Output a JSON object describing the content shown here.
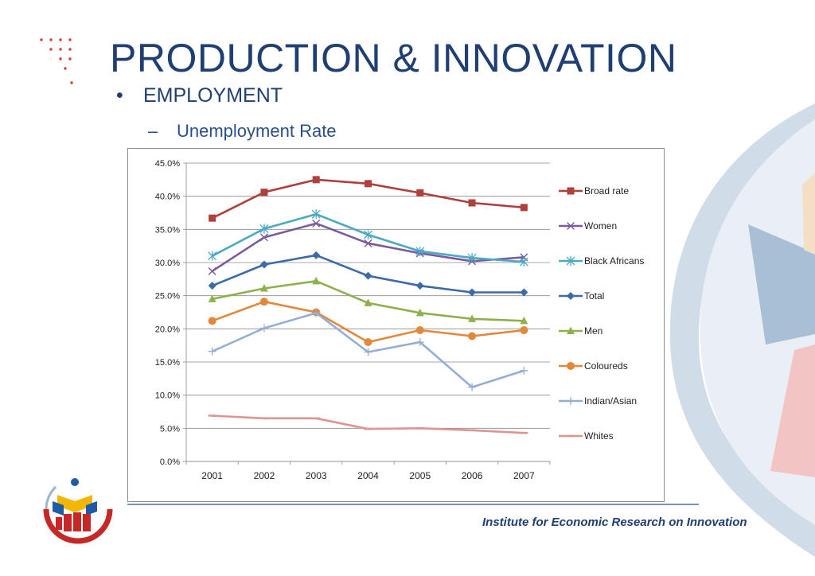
{
  "slide": {
    "title": "PRODUCTION & INNOVATION",
    "bullet": "EMPLOYMENT",
    "subbullet": "Unemployment Rate",
    "bullet_mark": "•",
    "sub_mark": "–",
    "footer": "Institute for Economic Research on Innovation"
  },
  "chart_data": {
    "type": "line",
    "title": "",
    "xlabel": "",
    "ylabel": "",
    "categories": [
      "2001",
      "2002",
      "2003",
      "2004",
      "2005",
      "2006",
      "2007"
    ],
    "ylim": [
      0,
      45
    ],
    "yticks": [
      "0.0%",
      "5.0%",
      "10.0%",
      "15.0%",
      "20.0%",
      "25.0%",
      "30.0%",
      "35.0%",
      "40.0%",
      "45.0%"
    ],
    "grid": true,
    "legend_position": "right",
    "series": [
      {
        "name": "Broad rate",
        "color": "#b0403b",
        "marker": "square",
        "values": [
          36.7,
          40.6,
          42.5,
          41.9,
          40.5,
          39.0,
          38.3
        ]
      },
      {
        "name": "Women",
        "color": "#7b5a9e",
        "marker": "x",
        "values": [
          28.7,
          33.8,
          35.9,
          32.9,
          31.4,
          30.2,
          30.8
        ]
      },
      {
        "name": "Black Africans",
        "color": "#4aaac3",
        "marker": "asterisk",
        "values": [
          31.0,
          35.1,
          37.3,
          34.2,
          31.7,
          30.7,
          30.1
        ]
      },
      {
        "name": "Total",
        "color": "#3d6aa8",
        "marker": "diamond",
        "values": [
          26.5,
          29.7,
          31.1,
          28.0,
          26.5,
          25.5,
          25.5
        ]
      },
      {
        "name": "Men",
        "color": "#8eb14e",
        "marker": "triangle",
        "values": [
          24.5,
          26.1,
          27.2,
          23.9,
          22.4,
          21.5,
          21.2
        ]
      },
      {
        "name": "Coloureds",
        "color": "#e38839",
        "marker": "circle",
        "values": [
          21.2,
          24.1,
          22.5,
          18.0,
          19.8,
          18.9,
          19.8
        ]
      },
      {
        "name": "Indian/Asian",
        "color": "#94aed5",
        "marker": "plus",
        "values": [
          16.6,
          20.1,
          22.4,
          16.5,
          18.0,
          11.2,
          13.7
        ]
      },
      {
        "name": "Whites",
        "color": "#dc9593",
        "marker": "dash",
        "values": [
          6.9,
          6.5,
          6.5,
          4.9,
          5.0,
          4.7,
          4.3
        ]
      }
    ]
  }
}
